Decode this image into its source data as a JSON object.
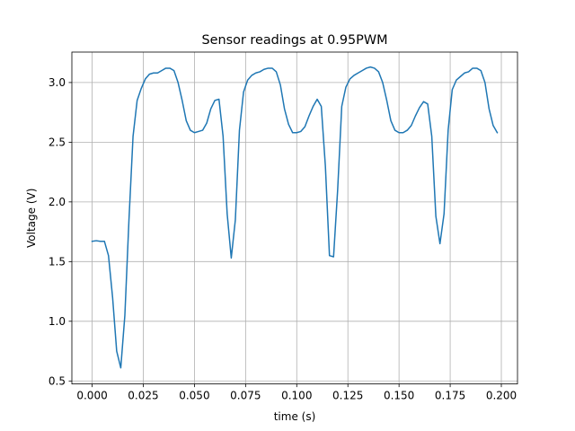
{
  "chart_data": {
    "type": "line",
    "title": "Sensor readings at 0.95PWM",
    "xlabel": "time (s)",
    "ylabel": "Voltage (V)",
    "xlim": [
      -0.0099,
      0.2079
    ],
    "ylim": [
      0.475,
      3.255
    ],
    "xticks": [
      0.0,
      0.025,
      0.05,
      0.075,
      0.1,
      0.125,
      0.15,
      0.175,
      0.2
    ],
    "xtick_labels": [
      "0.000",
      "0.025",
      "0.050",
      "0.075",
      "0.100",
      "0.125",
      "0.150",
      "0.175",
      "0.200"
    ],
    "yticks": [
      0.5,
      1.0,
      1.5,
      2.0,
      2.5,
      3.0
    ],
    "ytick_labels": [
      "0.5",
      "1.0",
      "1.5",
      "2.0",
      "2.5",
      "3.0"
    ],
    "grid": true,
    "series": [
      {
        "color": "#1f77b4",
        "x": [
          0.0,
          0.002,
          0.004,
          0.006,
          0.008,
          0.01,
          0.012,
          0.014,
          0.016,
          0.018,
          0.02,
          0.022,
          0.024,
          0.026,
          0.028,
          0.03,
          0.032,
          0.034,
          0.036,
          0.038,
          0.04,
          0.042,
          0.044,
          0.046,
          0.048,
          0.05,
          0.052,
          0.054,
          0.056,
          0.058,
          0.06,
          0.062,
          0.064,
          0.066,
          0.068,
          0.07,
          0.072,
          0.074,
          0.076,
          0.078,
          0.08,
          0.082,
          0.084,
          0.086,
          0.088,
          0.09,
          0.092,
          0.094,
          0.096,
          0.098,
          0.1,
          0.102,
          0.104,
          0.106,
          0.108,
          0.11,
          0.112,
          0.114,
          0.116,
          0.118,
          0.12,
          0.122,
          0.124,
          0.126,
          0.128,
          0.13,
          0.132,
          0.134,
          0.136,
          0.138,
          0.14,
          0.142,
          0.144,
          0.146,
          0.148,
          0.15,
          0.152,
          0.154,
          0.156,
          0.158,
          0.16,
          0.162,
          0.164,
          0.166,
          0.168,
          0.17,
          0.172,
          0.174,
          0.176,
          0.178,
          0.18,
          0.182,
          0.184,
          0.186,
          0.188,
          0.19,
          0.192,
          0.194,
          0.196,
          0.198
        ],
        "y": [
          1.67,
          1.675,
          1.67,
          1.67,
          1.55,
          1.2,
          0.75,
          0.61,
          1.05,
          1.85,
          2.55,
          2.85,
          2.95,
          3.03,
          3.07,
          3.08,
          3.08,
          3.1,
          3.12,
          3.12,
          3.1,
          3.0,
          2.85,
          2.68,
          2.6,
          2.58,
          2.59,
          2.6,
          2.66,
          2.78,
          2.85,
          2.86,
          2.55,
          1.9,
          1.53,
          1.85,
          2.6,
          2.92,
          3.02,
          3.06,
          3.08,
          3.09,
          3.11,
          3.12,
          3.12,
          3.09,
          2.98,
          2.78,
          2.65,
          2.58,
          2.58,
          2.59,
          2.63,
          2.72,
          2.8,
          2.86,
          2.8,
          2.3,
          1.55,
          1.54,
          2.1,
          2.8,
          2.96,
          3.03,
          3.06,
          3.08,
          3.1,
          3.12,
          3.13,
          3.12,
          3.09,
          3.0,
          2.85,
          2.68,
          2.6,
          2.58,
          2.58,
          2.6,
          2.64,
          2.72,
          2.79,
          2.84,
          2.82,
          2.55,
          1.88,
          1.65,
          1.9,
          2.6,
          2.94,
          3.02,
          3.05,
          3.08,
          3.09,
          3.12,
          3.12,
          3.1,
          3.0,
          2.78,
          2.64,
          2.58
        ]
      }
    ]
  }
}
